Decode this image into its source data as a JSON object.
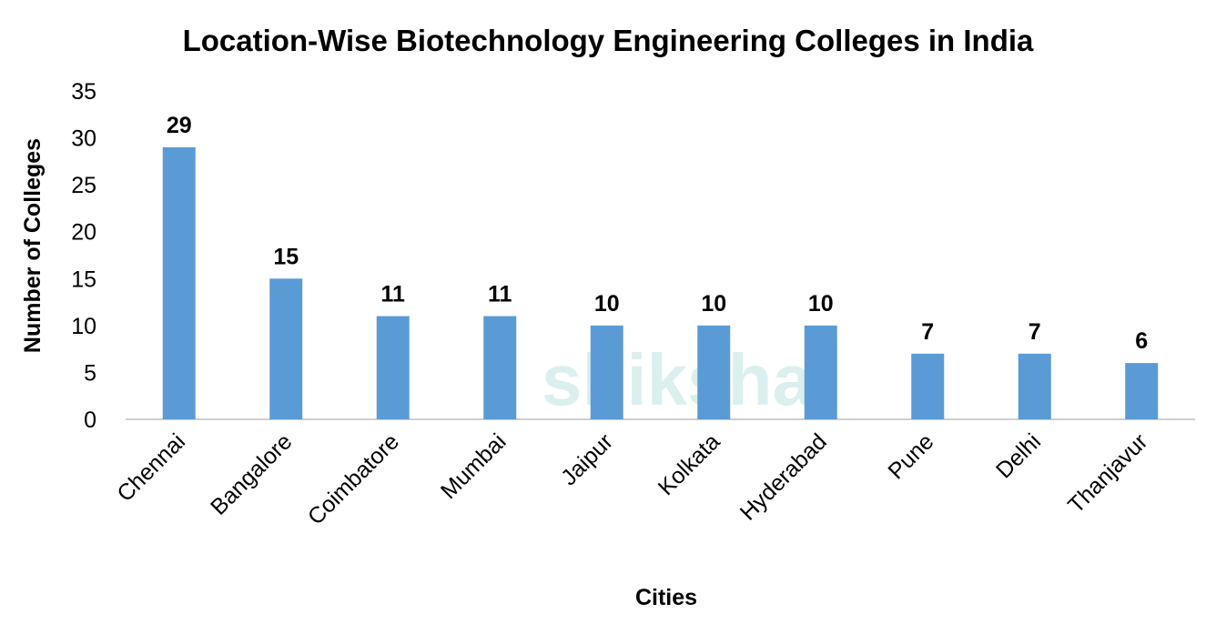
{
  "chart_data": {
    "type": "bar",
    "title": "Location-Wise Biotechnology Engineering Colleges in India",
    "xlabel": "Cities",
    "ylabel": "Number of Colleges",
    "categories": [
      "Chennai",
      "Bangalore",
      "Coimbatore",
      "Mumbai",
      "Jaipur",
      "Kolkata",
      "Hyderabad",
      "Pune",
      "Delhi",
      "Thanjavur"
    ],
    "values": [
      29,
      15,
      11,
      11,
      10,
      10,
      10,
      7,
      7,
      6
    ],
    "ylim": [
      0,
      35
    ],
    "yticks": [
      0,
      5,
      10,
      15,
      20,
      25,
      30,
      35
    ],
    "grid": false,
    "legend": "none",
    "bar_color": "#5B9BD5",
    "data_labels": true
  },
  "watermark": "shiksha"
}
